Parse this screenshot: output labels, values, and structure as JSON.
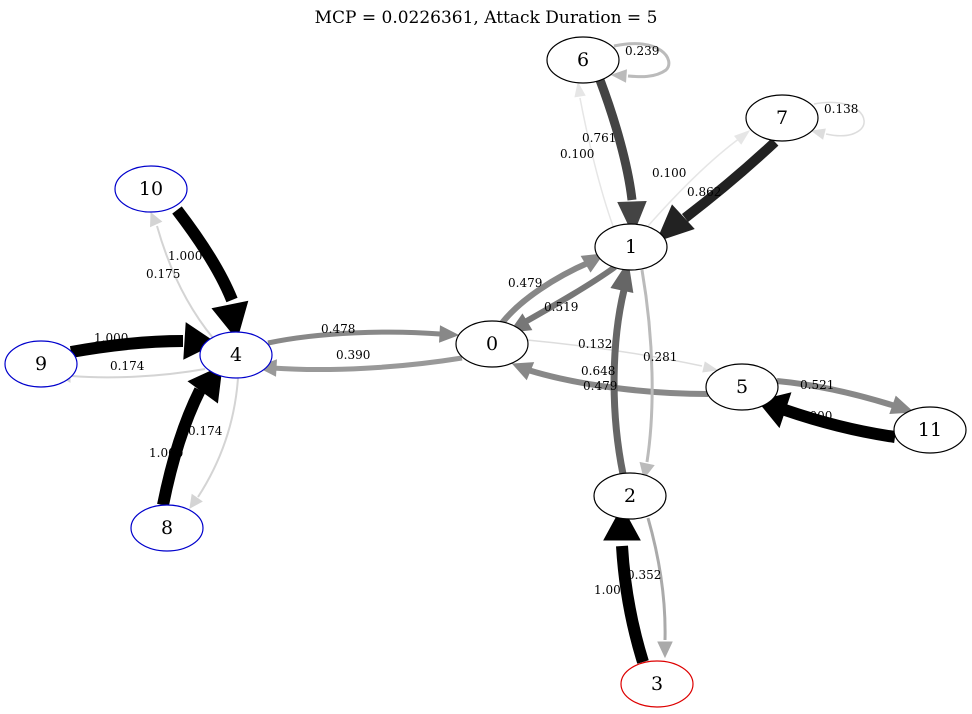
{
  "title": "MCP = 0.0226361, Attack Duration = 5",
  "nodes": [
    {
      "id": "0",
      "label": "0",
      "border": "#000000"
    },
    {
      "id": "1",
      "label": "1",
      "border": "#000000"
    },
    {
      "id": "2",
      "label": "2",
      "border": "#000000"
    },
    {
      "id": "3",
      "label": "3",
      "border": "#dd0000"
    },
    {
      "id": "4",
      "label": "4",
      "border": "#0000cc"
    },
    {
      "id": "5",
      "label": "5",
      "border": "#000000"
    },
    {
      "id": "6",
      "label": "6",
      "border": "#000000"
    },
    {
      "id": "7",
      "label": "7",
      "border": "#000000"
    },
    {
      "id": "8",
      "label": "8",
      "border": "#0000cc"
    },
    {
      "id": "9",
      "label": "9",
      "border": "#0000cc"
    },
    {
      "id": "10",
      "label": "10",
      "border": "#0000cc"
    },
    {
      "id": "11",
      "label": "11",
      "border": "#000000"
    }
  ],
  "edges": [
    {
      "id": "e-0-4",
      "from": "0",
      "to": "4",
      "label": "0.390",
      "color": "#999999"
    },
    {
      "id": "e-4-0",
      "from": "4",
      "to": "0",
      "label": "0.478",
      "color": "#888888"
    },
    {
      "id": "e-0-1",
      "from": "0",
      "to": "1",
      "label": "0.479",
      "color": "#888888"
    },
    {
      "id": "e-1-0",
      "from": "1",
      "to": "0",
      "label": "0.519",
      "color": "#777777"
    },
    {
      "id": "e-0-5",
      "from": "0",
      "to": "5",
      "label": "0.132",
      "color": "#dddddd"
    },
    {
      "id": "e-5-0",
      "from": "5",
      "to": "0",
      "label": "0.479",
      "color": "#888888"
    },
    {
      "id": "e-1-2",
      "from": "1",
      "to": "2",
      "label": "0.281",
      "color": "#bbbbbb"
    },
    {
      "id": "e-2-1",
      "from": "2",
      "to": "1",
      "label": "0.648",
      "color": "#666666"
    },
    {
      "id": "e-1-6",
      "from": "1",
      "to": "6",
      "label": "0.100",
      "color": "#e6e6e6"
    },
    {
      "id": "e-6-1",
      "from": "6",
      "to": "1",
      "label": "0.761",
      "color": "#444444"
    },
    {
      "id": "e-1-7",
      "from": "1",
      "to": "7",
      "label": "0.100",
      "color": "#e6e6e6"
    },
    {
      "id": "e-7-1",
      "from": "7",
      "to": "1",
      "label": "0.862",
      "color": "#222222"
    },
    {
      "id": "e-6-6",
      "from": "6",
      "to": "6",
      "label": "0.239",
      "color": "#bbbbbb"
    },
    {
      "id": "e-7-7",
      "from": "7",
      "to": "7",
      "label": "0.138",
      "color": "#dddddd"
    },
    {
      "id": "e-2-3",
      "from": "2",
      "to": "3",
      "label": "0.352",
      "color": "#aaaaaa"
    },
    {
      "id": "e-3-2",
      "from": "3",
      "to": "2",
      "label": "1.000",
      "color": "#000000"
    },
    {
      "id": "e-5-11",
      "from": "5",
      "to": "11",
      "label": "0.521",
      "color": "#888888"
    },
    {
      "id": "e-11-5",
      "from": "11",
      "to": "5",
      "label": "1.000",
      "color": "#000000"
    },
    {
      "id": "e-4-10",
      "from": "4",
      "to": "10",
      "label": "0.175",
      "color": "#d4d4d4"
    },
    {
      "id": "e-10-4",
      "from": "10",
      "to": "4",
      "label": "1.000",
      "color": "#000000"
    },
    {
      "id": "e-9-4",
      "from": "9",
      "to": "4",
      "label": "1.000",
      "color": "#000000"
    },
    {
      "id": "e-4-9",
      "from": "4",
      "to": "9",
      "label": "0.174",
      "color": "#d4d4d4"
    },
    {
      "id": "e-8-4",
      "from": "8",
      "to": "4",
      "label": "1.000",
      "color": "#000000"
    },
    {
      "id": "e-4-8",
      "from": "4",
      "to": "8",
      "label": "0.174",
      "color": "#d4d4d4"
    }
  ]
}
